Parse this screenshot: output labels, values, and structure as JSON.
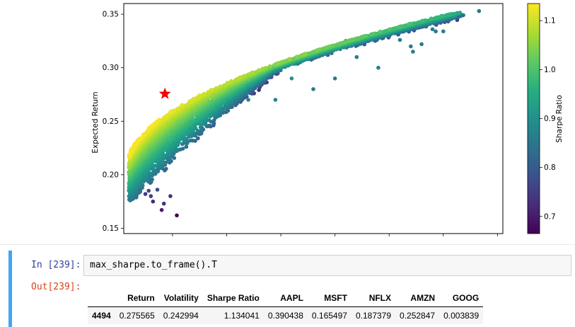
{
  "chart_data": {
    "type": "scatter",
    "title": "",
    "xlabel": "",
    "ylabel": "Expected Return",
    "xlim": [
      0.205,
      0.555
    ],
    "ylim": [
      0.145,
      0.36
    ],
    "yticks": [
      0.15,
      0.2,
      0.25,
      0.3,
      0.35
    ],
    "ytick_labels": [
      "0.15",
      "0.20",
      "0.25",
      "0.30",
      "0.35"
    ],
    "colorbar": {
      "label": "Sharpe Ratio",
      "colormap": "viridis",
      "range": [
        0.665,
        1.135
      ],
      "ticks": [
        0.7,
        0.8,
        0.9,
        1.0,
        1.1
      ],
      "tick_labels": [
        "0.7",
        "0.8",
        "0.9",
        "1.0",
        "1.1"
      ]
    },
    "n_points": 5000,
    "frontier_description": "points fill region between lower boundary and efficient frontier",
    "notable_points": [
      {
        "x": 0.254,
        "y": 0.162,
        "sharpe": 0.665
      },
      {
        "x": 0.533,
        "y": 0.353,
        "sharpe": 0.85
      },
      {
        "x": 0.5,
        "y": 0.334,
        "sharpe": 0.86
      }
    ],
    "max_sharpe_marker": {
      "x": 0.243,
      "y": 0.2756,
      "color": "#ff0000",
      "shape": "star"
    }
  },
  "notebook": {
    "in_prompt": "In [239]:",
    "code": "max_sharpe.to_frame().T",
    "out_prompt": "Out[239]:"
  },
  "table": {
    "columns": [
      "Return",
      "Volatility",
      "Sharpe Ratio",
      "AAPL",
      "MSFT",
      "NFLX",
      "AMZN",
      "GOOG"
    ],
    "index": "4494",
    "row": [
      "0.275565",
      "0.242994",
      "1.134041",
      "0.390438",
      "0.165497",
      "0.187379",
      "0.252847",
      "0.003839"
    ]
  },
  "colors": {
    "cell_bar": "#42a5f5",
    "in_prompt": "#303f9f",
    "out_prompt": "#d84315",
    "code_bg": "#f7f7f7"
  }
}
